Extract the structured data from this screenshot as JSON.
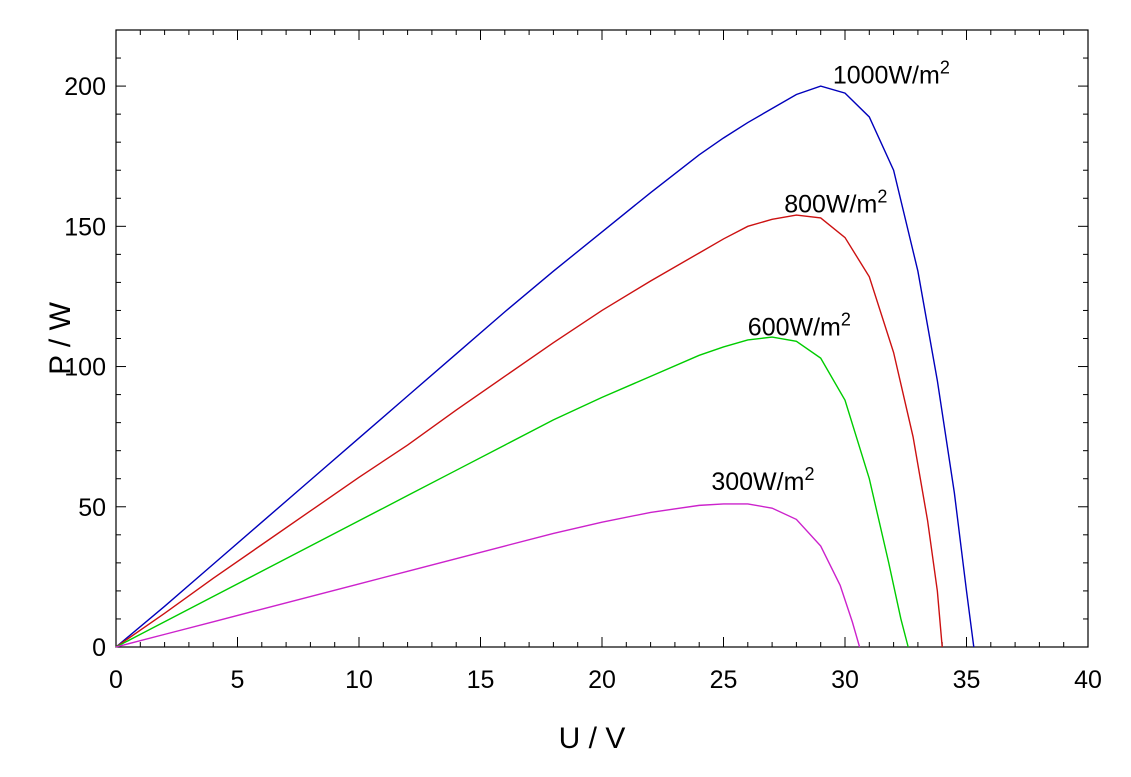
{
  "chart_data": {
    "type": "line",
    "title": "",
    "xlabel": "U / V",
    "ylabel": "P / W",
    "xlim": [
      0,
      40
    ],
    "ylim": [
      0,
      220
    ],
    "xticks": [
      0,
      5,
      10,
      15,
      20,
      25,
      30,
      35,
      40
    ],
    "yticks": [
      0,
      50,
      100,
      150,
      200
    ],
    "grid": false,
    "series": [
      {
        "label": "1000W/m2",
        "label_main": "1000W/m",
        "label_sup": "2",
        "label_at": [
          29.5,
          201
        ],
        "color": "#0000bb",
        "x": [
          0,
          2,
          4,
          6,
          8,
          10,
          12,
          14,
          16,
          18,
          20,
          22,
          24,
          25,
          26,
          27,
          28,
          29,
          30,
          31,
          32,
          33,
          33.8,
          34.5,
          35.0,
          35.3
        ],
        "y": [
          0,
          14.5,
          29.5,
          44.5,
          59.5,
          74.5,
          89.5,
          104.5,
          119.5,
          134,
          148,
          162,
          175.5,
          181.5,
          187,
          192,
          197,
          200,
          197.5,
          189,
          170,
          134,
          95,
          55,
          20,
          0
        ]
      },
      {
        "label": "800W/m2",
        "label_main": "800W/m",
        "label_sup": "2",
        "label_at": [
          27.5,
          155
        ],
        "color": "#cc1111",
        "x": [
          0,
          2,
          4,
          6,
          8,
          10,
          12,
          14,
          16,
          18,
          20,
          22,
          24,
          25,
          26,
          27,
          28,
          29,
          30,
          31,
          32,
          32.8,
          33.4,
          33.8,
          34.0
        ],
        "y": [
          0,
          12,
          24.5,
          36.5,
          48.5,
          60.5,
          72,
          84.5,
          96.5,
          108.5,
          120,
          130.5,
          140.5,
          145.5,
          150,
          152.5,
          154,
          153,
          146,
          132,
          105,
          75,
          45,
          20,
          0
        ]
      },
      {
        "label": "600W/m2",
        "label_main": "600W/m",
        "label_sup": "2",
        "label_at": [
          26.0,
          111
        ],
        "color": "#00cc00",
        "x": [
          0,
          2,
          4,
          6,
          8,
          10,
          12,
          14,
          16,
          18,
          20,
          22,
          24,
          25,
          26,
          27,
          28,
          29,
          30,
          31,
          31.8,
          32.3,
          32.6
        ],
        "y": [
          0,
          9,
          18,
          27,
          36,
          45,
          54,
          63,
          72,
          81,
          89,
          96.5,
          104,
          107,
          109.5,
          110.5,
          109,
          103,
          88,
          60,
          30,
          10,
          0
        ]
      },
      {
        "label": "300W/m2",
        "label_main": "300W/m",
        "label_sup": "2",
        "label_at": [
          24.5,
          56
        ],
        "color": "#cc22cc",
        "x": [
          0,
          2,
          4,
          6,
          8,
          10,
          12,
          14,
          16,
          18,
          20,
          22,
          24,
          25,
          26,
          27,
          28,
          29,
          29.8,
          30.3,
          30.6
        ],
        "y": [
          0,
          4.5,
          9,
          13.5,
          18,
          22.5,
          27,
          31.5,
          36,
          40.5,
          44.5,
          48,
          50.5,
          51,
          51,
          49.5,
          45.5,
          36,
          22,
          9,
          0
        ]
      }
    ]
  }
}
